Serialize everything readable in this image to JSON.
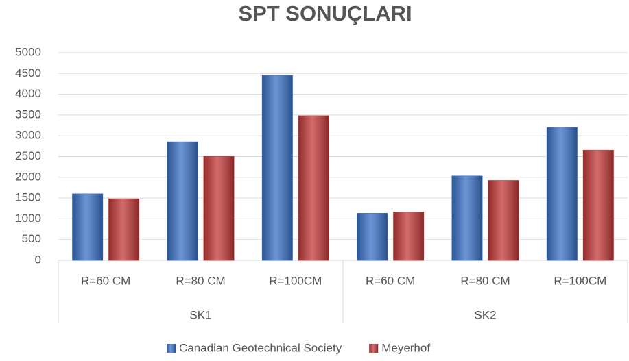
{
  "chart_data": {
    "type": "bar",
    "title": "SPT SONUÇLARI",
    "categories": [
      "R=60 CM",
      "R=80 CM",
      "R=100CM",
      "R=60 CM",
      "R=80 CM",
      "R=100CM"
    ],
    "groups": [
      "SK1",
      "SK2"
    ],
    "series": [
      {
        "name": "Canadian Geotechnical Society",
        "color": "#3a72c6",
        "values": [
          1600,
          2850,
          4450,
          1130,
          2030,
          3200
        ]
      },
      {
        "name": "Meyerhof",
        "color": "#c43a3a",
        "values": [
          1480,
          2500,
          3480,
          1160,
          1920,
          2650
        ]
      }
    ],
    "ylim": [
      0,
      5000
    ],
    "yticks": [
      0,
      500,
      1000,
      1500,
      2000,
      2500,
      3000,
      3500,
      4000,
      4500,
      5000
    ],
    "grid": true,
    "legend": "bottom"
  }
}
